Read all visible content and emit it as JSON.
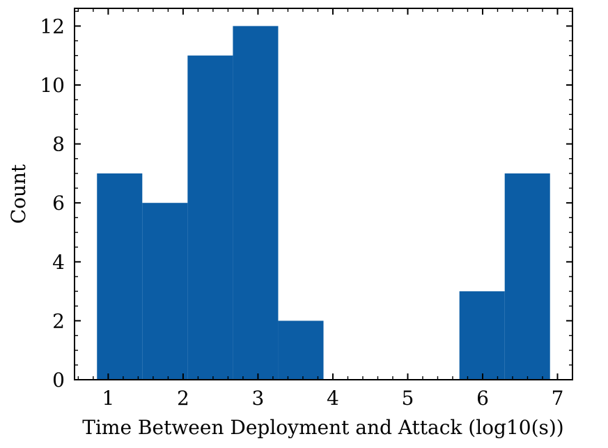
{
  "chart_data": {
    "type": "bar",
    "title": "",
    "xlabel": "Time Between Deployment and Attack (log10(s))",
    "ylabel": "Count",
    "xlim": [
      0.55,
      7.2
    ],
    "ylim": [
      0,
      12.6
    ],
    "xticks": [
      1,
      2,
      3,
      4,
      5,
      6,
      7
    ],
    "yticks": [
      0,
      2,
      4,
      6,
      8,
      10,
      12
    ],
    "grid": false,
    "bar_color": "#0C5DA5",
    "bins": [
      {
        "x0": 0.85,
        "x1": 1.455,
        "count": 7
      },
      {
        "x0": 1.455,
        "x1": 2.06,
        "count": 6
      },
      {
        "x0": 2.06,
        "x1": 2.665,
        "count": 11
      },
      {
        "x0": 2.665,
        "x1": 3.27,
        "count": 12
      },
      {
        "x0": 3.27,
        "x1": 3.875,
        "count": 2
      },
      {
        "x0": 3.875,
        "x1": 4.48,
        "count": 0
      },
      {
        "x0": 4.48,
        "x1": 5.085,
        "count": 0
      },
      {
        "x0": 5.085,
        "x1": 5.69,
        "count": 0
      },
      {
        "x0": 5.69,
        "x1": 6.295,
        "count": 3
      },
      {
        "x0": 6.295,
        "x1": 6.9,
        "count": 7
      }
    ]
  }
}
